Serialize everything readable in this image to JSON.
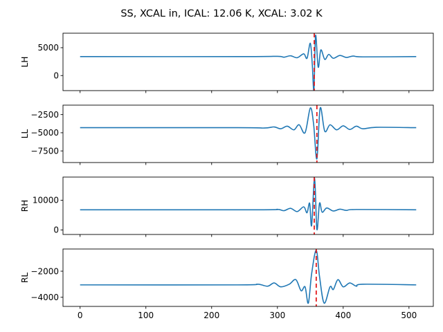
{
  "figure": {
    "title": "SS, XCAL in, ICAL: 12.06 K, XCAL: 3.02 K"
  },
  "chart_data": [
    {
      "type": "line",
      "ylabel": "LH",
      "xlim": [
        -26,
        537
      ],
      "ylim": [
        -2700,
        7600
      ],
      "yticks": [
        0,
        5000
      ],
      "xticks": [
        0,
        100,
        200,
        300,
        400,
        500
      ],
      "baseline": 3400,
      "center_x": 355.5,
      "marker_x": 356,
      "series": [
        {
          "points": [
            [
              0,
              3400
            ],
            [
              250,
              3400
            ],
            [
              300,
              3450
            ],
            [
              310,
              3300
            ],
            [
              320,
              3550
            ],
            [
              330,
              3200
            ],
            [
              340,
              3900
            ],
            [
              345,
              3100
            ],
            [
              350,
              5800
            ],
            [
              353,
              2000
            ],
            [
              355.5,
              -2600
            ],
            [
              358,
              7200
            ],
            [
              362,
              1500
            ],
            [
              366,
              4600
            ],
            [
              372,
              2900
            ],
            [
              378,
              3800
            ],
            [
              385,
              3100
            ],
            [
              395,
              3600
            ],
            [
              405,
              3250
            ],
            [
              415,
              3500
            ],
            [
              430,
              3350
            ],
            [
              511,
              3400
            ]
          ]
        }
      ]
    },
    {
      "type": "line",
      "ylabel": "LL",
      "xlim": [
        -26,
        537
      ],
      "ylim": [
        -9100,
        -1200
      ],
      "yticks": [
        -7500,
        -5000,
        -2500
      ],
      "xticks": [
        0,
        100,
        200,
        300,
        400,
        500
      ],
      "baseline": -4300,
      "center_x": 360,
      "marker_x": 360,
      "series": [
        {
          "points": [
            [
              0,
              -4300
            ],
            [
              240,
              -4300
            ],
            [
              280,
              -4350
            ],
            [
              295,
              -4200
            ],
            [
              305,
              -4450
            ],
            [
              315,
              -4100
            ],
            [
              325,
              -4600
            ],
            [
              333,
              -3900
            ],
            [
              342,
              -5000
            ],
            [
              350,
              -1600
            ],
            [
              355,
              -3800
            ],
            [
              360,
              -8600
            ],
            [
              365,
              -1600
            ],
            [
              372,
              -4800
            ],
            [
              380,
              -3900
            ],
            [
              390,
              -4600
            ],
            [
              400,
              -4050
            ],
            [
              410,
              -4550
            ],
            [
              420,
              -4100
            ],
            [
              430,
              -4450
            ],
            [
              450,
              -4250
            ],
            [
              511,
              -4300
            ]
          ]
        }
      ]
    },
    {
      "type": "line",
      "ylabel": "RH",
      "xlim": [
        -26,
        537
      ],
      "ylim": [
        -1500,
        17800
      ],
      "yticks": [
        0,
        10000
      ],
      "xticks": [
        0,
        100,
        200,
        300,
        400,
        500
      ],
      "baseline": 6800,
      "center_x": 356.5,
      "marker_x": 356,
      "series": [
        {
          "points": [
            [
              0,
              6800
            ],
            [
              270,
              6800
            ],
            [
              300,
              6950
            ],
            [
              310,
              6500
            ],
            [
              320,
              7300
            ],
            [
              330,
              6200
            ],
            [
              340,
              7800
            ],
            [
              345,
              5800
            ],
            [
              349,
              9000
            ],
            [
              352,
              1500
            ],
            [
              356.5,
              17500
            ],
            [
              360,
              200
            ],
            [
              364,
              9000
            ],
            [
              368,
              6000
            ],
            [
              375,
              7400
            ],
            [
              385,
              6400
            ],
            [
              395,
              7000
            ],
            [
              405,
              6600
            ],
            [
              420,
              6900
            ],
            [
              511,
              6800
            ]
          ]
        }
      ]
    },
    {
      "type": "line",
      "ylabel": "RL",
      "xlim": [
        -26,
        537
      ],
      "ylim": [
        -4700,
        -300
      ],
      "yticks": [
        -4000,
        -2000
      ],
      "xticks": [
        0,
        100,
        200,
        300,
        400,
        500
      ],
      "baseline": -3050,
      "center_x": 359,
      "marker_x": 359,
      "series": [
        {
          "points": [
            [
              0,
              -3050
            ],
            [
              240,
              -3050
            ],
            [
              270,
              -3000
            ],
            [
              285,
              -3150
            ],
            [
              295,
              -2900
            ],
            [
              305,
              -3200
            ],
            [
              318,
              -3000
            ],
            [
              328,
              -2650
            ],
            [
              336,
              -3500
            ],
            [
              342,
              -3200
            ],
            [
              347,
              -4450
            ],
            [
              352,
              -2200
            ],
            [
              359,
              -400
            ],
            [
              364,
              -2400
            ],
            [
              371,
              -4450
            ],
            [
              380,
              -3200
            ],
            [
              385,
              -3400
            ],
            [
              392,
              -2650
            ],
            [
              400,
              -3200
            ],
            [
              410,
              -2900
            ],
            [
              420,
              -3150
            ],
            [
              430,
              -3000
            ],
            [
              511,
              -3050
            ]
          ]
        }
      ]
    }
  ]
}
